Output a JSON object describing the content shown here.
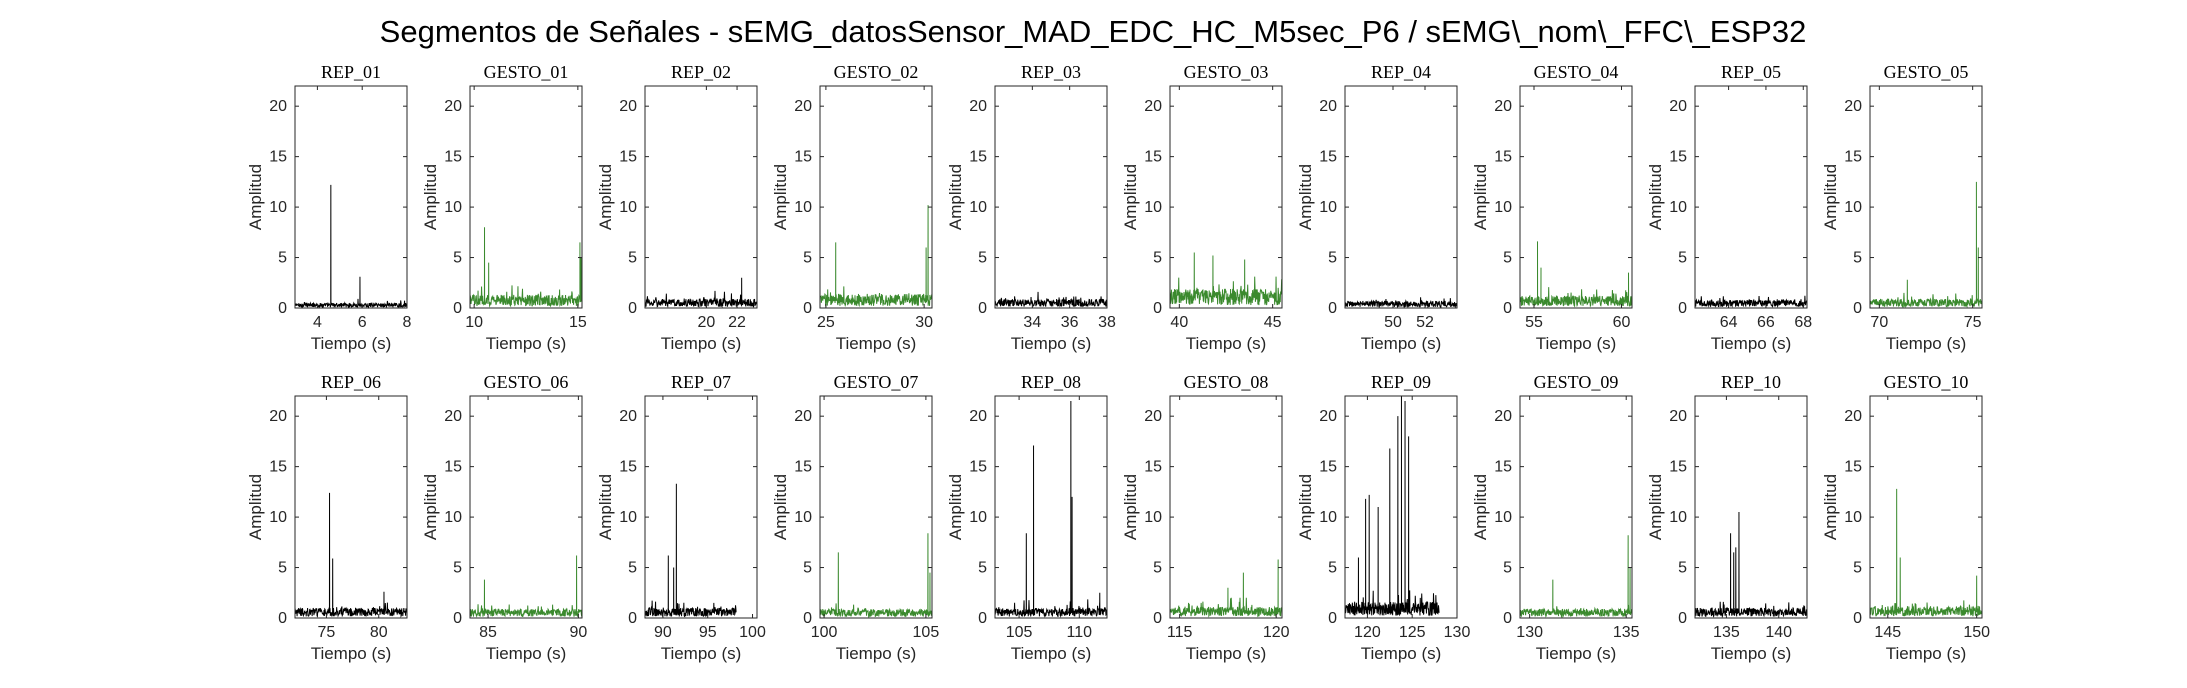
{
  "title": "Segmentos de Señales - sEMG_datosSensor_MAD_EDC_HC_M5sec_P6 / sEMG\\_nom\\_FFC\\_ESP32",
  "colors": {
    "rep": "#000000",
    "gesto": "#3b8a2e",
    "axis": "#262626"
  },
  "chart_data": [
    {
      "type": "line",
      "title": "REP_01",
      "kind": "rep",
      "xlabel": "Tiempo (s)",
      "ylabel": "Amplitud",
      "xlim": [
        3,
        8
      ],
      "ylim": [
        0,
        22
      ],
      "xticks": [
        4,
        6,
        8
      ],
      "yticks": [
        0,
        5,
        10,
        15,
        20
      ],
      "data_xrange": [
        3,
        8
      ],
      "baseline": 0.5,
      "noise": 0.4,
      "peaks": [
        [
          4.6,
          12.2
        ],
        [
          5.9,
          3.1
        ]
      ]
    },
    {
      "type": "line",
      "title": "GESTO_01",
      "kind": "gesto",
      "xlabel": "Tiempo (s)",
      "ylabel": "Amplitud",
      "xlim": [
        9.8,
        15.2
      ],
      "ylim": [
        0,
        22
      ],
      "xticks": [
        10,
        15
      ],
      "yticks": [
        0,
        5,
        10,
        15,
        20
      ],
      "data_xrange": [
        9.8,
        15.2
      ],
      "baseline": 1.3,
      "noise": 1.0,
      "peaks": [
        [
          10.5,
          8.0
        ],
        [
          10.7,
          4.5
        ],
        [
          15.1,
          6.5
        ],
        [
          15.15,
          5.0
        ]
      ]
    },
    {
      "type": "line",
      "title": "REP_02",
      "kind": "rep",
      "xlabel": "Tiempo (s)",
      "ylabel": "Amplitud",
      "xlim": [
        16,
        23.3
      ],
      "ylim": [
        0,
        22
      ],
      "xticks": [
        20,
        22
      ],
      "yticks": [
        0,
        5,
        10,
        15,
        20
      ],
      "data_xrange": [
        16,
        23.3
      ],
      "baseline": 0.9,
      "noise": 0.8,
      "peaks": [
        [
          22.3,
          3.0
        ]
      ]
    },
    {
      "type": "line",
      "title": "GESTO_02",
      "kind": "gesto",
      "xlabel": "Tiempo (s)",
      "ylabel": "Amplitud",
      "xlim": [
        24.7,
        30.4
      ],
      "ylim": [
        0,
        22
      ],
      "xticks": [
        25,
        30
      ],
      "yticks": [
        0,
        5,
        10,
        15,
        20
      ],
      "data_xrange": [
        24.7,
        30.4
      ],
      "baseline": 1.4,
      "noise": 1.0,
      "peaks": [
        [
          25.5,
          6.5
        ],
        [
          30.2,
          10.2
        ],
        [
          30.1,
          6.0
        ]
      ]
    },
    {
      "type": "line",
      "title": "REP_03",
      "kind": "rep",
      "xlabel": "Tiempo (s)",
      "ylabel": "Amplitud",
      "xlim": [
        32,
        38
      ],
      "ylim": [
        0,
        22
      ],
      "xticks": [
        34,
        36,
        38
      ],
      "yticks": [
        0,
        5,
        10,
        15,
        20
      ],
      "data_xrange": [
        32,
        38
      ],
      "baseline": 0.9,
      "noise": 0.7,
      "peaks": []
    },
    {
      "type": "line",
      "title": "GESTO_03",
      "kind": "gesto",
      "xlabel": "Tiempo (s)",
      "ylabel": "Amplitud",
      "xlim": [
        39.5,
        45.5
      ],
      "ylim": [
        0,
        22
      ],
      "xticks": [
        40,
        45
      ],
      "yticks": [
        0,
        5,
        10,
        15,
        20
      ],
      "data_xrange": [
        39.5,
        45.5
      ],
      "baseline": 1.9,
      "noise": 1.6,
      "peaks": [
        [
          40.8,
          5.5
        ],
        [
          41.8,
          5.2
        ],
        [
          43.5,
          4.8
        ]
      ]
    },
    {
      "type": "line",
      "title": "REP_04",
      "kind": "rep",
      "xlabel": "Tiempo (s)",
      "ylabel": "Amplitud",
      "xlim": [
        47,
        54
      ],
      "ylim": [
        0,
        22
      ],
      "xticks": [
        50,
        52
      ],
      "yticks": [
        0,
        5,
        10,
        15,
        20
      ],
      "data_xrange": [
        47,
        54
      ],
      "baseline": 0.7,
      "noise": 0.5,
      "peaks": []
    },
    {
      "type": "line",
      "title": "GESTO_04",
      "kind": "gesto",
      "xlabel": "Tiempo (s)",
      "ylabel": "Amplitud",
      "xlim": [
        54.2,
        60.6
      ],
      "ylim": [
        0,
        22
      ],
      "xticks": [
        55,
        60
      ],
      "yticks": [
        0,
        5,
        10,
        15,
        20
      ],
      "data_xrange": [
        54.2,
        60.6
      ],
      "baseline": 1.2,
      "noise": 0.9,
      "peaks": [
        [
          55.2,
          6.6
        ],
        [
          55.4,
          4.0
        ],
        [
          60.4,
          3.5
        ]
      ]
    },
    {
      "type": "line",
      "title": "REP_05",
      "kind": "rep",
      "xlabel": "Tiempo (s)",
      "ylabel": "Amplitud",
      "xlim": [
        62.2,
        68.2
      ],
      "ylim": [
        0,
        22
      ],
      "xticks": [
        64,
        66,
        68
      ],
      "yticks": [
        0,
        5,
        10,
        15,
        20
      ],
      "data_xrange": [
        62.2,
        68.2
      ],
      "baseline": 0.8,
      "noise": 0.6,
      "peaks": []
    },
    {
      "type": "line",
      "title": "GESTO_05",
      "kind": "gesto",
      "xlabel": "Tiempo (s)",
      "ylabel": "Amplitud",
      "xlim": [
        69.5,
        75.5
      ],
      "ylim": [
        0,
        22
      ],
      "xticks": [
        70,
        75
      ],
      "yticks": [
        0,
        5,
        10,
        15,
        20
      ],
      "data_xrange": [
        69.5,
        75.5
      ],
      "baseline": 0.9,
      "noise": 0.6,
      "peaks": [
        [
          75.2,
          12.5
        ],
        [
          75.3,
          6.0
        ],
        [
          71.5,
          2.8
        ]
      ]
    },
    {
      "type": "line",
      "title": "REP_06",
      "kind": "rep",
      "xlabel": "Tiempo (s)",
      "ylabel": "Amplitud",
      "xlim": [
        72,
        82.7
      ],
      "ylim": [
        0,
        22
      ],
      "xticks": [
        75,
        80
      ],
      "yticks": [
        0,
        5,
        10,
        15,
        20
      ],
      "data_xrange": [
        72,
        82.7
      ],
      "baseline": 1.0,
      "noise": 0.8,
      "peaks": [
        [
          75.3,
          12.4
        ],
        [
          75.6,
          5.9
        ],
        [
          80.5,
          2.6
        ]
      ]
    },
    {
      "type": "line",
      "title": "GESTO_06",
      "kind": "gesto",
      "xlabel": "Tiempo (s)",
      "ylabel": "Amplitud",
      "xlim": [
        84,
        90.2
      ],
      "ylim": [
        0,
        22
      ],
      "xticks": [
        85,
        90
      ],
      "yticks": [
        0,
        5,
        10,
        15,
        20
      ],
      "data_xrange": [
        84,
        90.2
      ],
      "baseline": 0.9,
      "noise": 0.6,
      "peaks": [
        [
          84.8,
          3.8
        ],
        [
          89.9,
          6.2
        ]
      ]
    },
    {
      "type": "line",
      "title": "REP_07",
      "kind": "rep",
      "xlabel": "Tiempo (s)",
      "ylabel": "Amplitud",
      "xlim": [
        88,
        100.5
      ],
      "ylim": [
        0,
        22
      ],
      "xticks": [
        90,
        95,
        100
      ],
      "yticks": [
        0,
        5,
        10,
        15,
        20
      ],
      "data_xrange": [
        88,
        98.2
      ],
      "baseline": 1.0,
      "noise": 0.8,
      "peaks": [
        [
          91.5,
          13.3
        ],
        [
          90.6,
          6.2
        ],
        [
          91.2,
          5.0
        ]
      ]
    },
    {
      "type": "line",
      "title": "GESTO_07",
      "kind": "gesto",
      "xlabel": "Tiempo (s)",
      "ylabel": "Amplitud",
      "xlim": [
        99.8,
        105.3
      ],
      "ylim": [
        0,
        22
      ],
      "xticks": [
        100,
        105
      ],
      "yticks": [
        0,
        5,
        10,
        15,
        20
      ],
      "data_xrange": [
        99.8,
        105.3
      ],
      "baseline": 0.9,
      "noise": 0.7,
      "peaks": [
        [
          100.7,
          6.5
        ],
        [
          105.1,
          8.4
        ],
        [
          105.2,
          4.5
        ]
      ]
    },
    {
      "type": "line",
      "title": "REP_08",
      "kind": "rep",
      "xlabel": "Tiempo (s)",
      "ylabel": "Amplitud",
      "xlim": [
        103,
        112.3
      ],
      "ylim": [
        0,
        22
      ],
      "xticks": [
        105,
        110
      ],
      "yticks": [
        0,
        5,
        10,
        15,
        20
      ],
      "data_xrange": [
        103,
        112.3
      ],
      "baseline": 1.0,
      "noise": 0.9,
      "peaks": [
        [
          105.6,
          8.4
        ],
        [
          106.2,
          17.1
        ],
        [
          109.3,
          21.5
        ],
        [
          109.4,
          12.0
        ],
        [
          111.7,
          2.5
        ]
      ]
    },
    {
      "type": "line",
      "title": "GESTO_08",
      "kind": "gesto",
      "xlabel": "Tiempo (s)",
      "ylabel": "Amplitud",
      "xlim": [
        114.5,
        120.3
      ],
      "ylim": [
        0,
        22
      ],
      "xticks": [
        115,
        120
      ],
      "yticks": [
        0,
        5,
        10,
        15,
        20
      ],
      "data_xrange": [
        114.5,
        120.3
      ],
      "baseline": 1.1,
      "noise": 0.9,
      "peaks": [
        [
          118.3,
          4.5
        ],
        [
          117.5,
          3.0
        ],
        [
          120.1,
          5.8
        ]
      ]
    },
    {
      "type": "line",
      "title": "REP_09",
      "kind": "rep",
      "xlabel": "Tiempo (s)",
      "ylabel": "Amplitud",
      "xlim": [
        117.5,
        130
      ],
      "ylim": [
        0,
        22
      ],
      "xticks": [
        120,
        125,
        130
      ],
      "yticks": [
        0,
        5,
        10,
        15,
        20
      ],
      "data_xrange": [
        117.5,
        128
      ],
      "baseline": 1.6,
      "noise": 1.6,
      "peaks": [
        [
          119.8,
          11.8
        ],
        [
          120.2,
          12.2
        ],
        [
          121.2,
          11.0
        ],
        [
          122.5,
          16.8
        ],
        [
          123.4,
          20.0
        ],
        [
          123.8,
          22.0
        ],
        [
          124.2,
          21.5
        ],
        [
          124.6,
          18.0
        ],
        [
          119.0,
          6.0
        ]
      ]
    },
    {
      "type": "line",
      "title": "GESTO_09",
      "kind": "gesto",
      "xlabel": "Tiempo (s)",
      "ylabel": "Amplitud",
      "xlim": [
        129.5,
        135.3
      ],
      "ylim": [
        0,
        22
      ],
      "xticks": [
        130,
        135
      ],
      "yticks": [
        0,
        5,
        10,
        15,
        20
      ],
      "data_xrange": [
        129.5,
        135.3
      ],
      "baseline": 0.9,
      "noise": 0.6,
      "peaks": [
        [
          131.2,
          3.8
        ],
        [
          135.1,
          8.2
        ],
        [
          135.2,
          5.0
        ]
      ]
    },
    {
      "type": "line",
      "title": "REP_10",
      "kind": "rep",
      "xlabel": "Tiempo (s)",
      "ylabel": "Amplitud",
      "xlim": [
        132,
        142.7
      ],
      "ylim": [
        0,
        22
      ],
      "xticks": [
        135,
        140
      ],
      "yticks": [
        0,
        5,
        10,
        15,
        20
      ],
      "data_xrange": [
        132,
        142.7
      ],
      "baseline": 1.0,
      "noise": 0.8,
      "peaks": [
        [
          135.4,
          8.4
        ],
        [
          135.7,
          6.5
        ],
        [
          136.2,
          10.5
        ],
        [
          135.9,
          7.0
        ]
      ]
    },
    {
      "type": "line",
      "title": "GESTO_10",
      "kind": "gesto",
      "xlabel": "Tiempo (s)",
      "ylabel": "Amplitud",
      "xlim": [
        144,
        150.3
      ],
      "ylim": [
        0,
        22
      ],
      "xticks": [
        145,
        150
      ],
      "yticks": [
        0,
        5,
        10,
        15,
        20
      ],
      "data_xrange": [
        144,
        150.3
      ],
      "baseline": 1.2,
      "noise": 0.9,
      "peaks": [
        [
          145.5,
          12.8
        ],
        [
          145.7,
          6.0
        ],
        [
          150.0,
          4.2
        ]
      ]
    }
  ]
}
